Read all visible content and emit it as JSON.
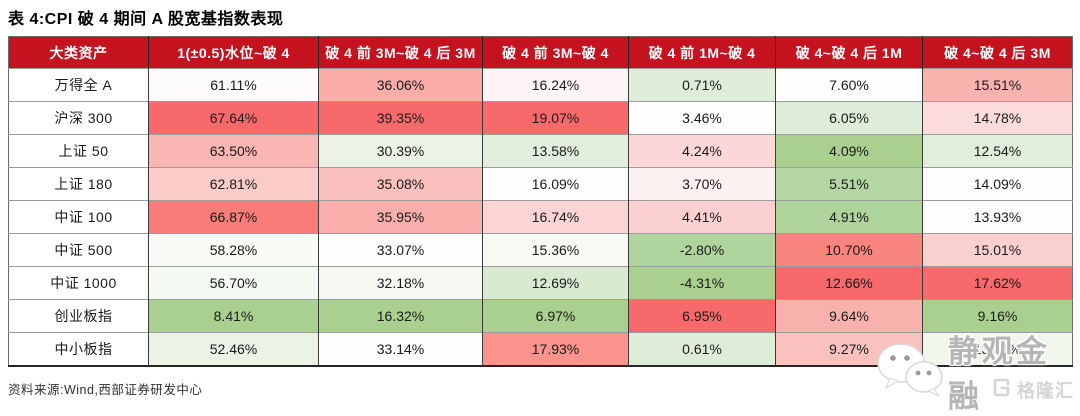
{
  "chart_data": {
    "type": "table",
    "title": "表 4:CPI 破 4 期间 A 股宽基指数表现",
    "source_note": "资料来源:Wind,西部证券研发中心",
    "columns": [
      "大类资产",
      "1(±0.5)水位~破 4",
      "破 4 前 3M~破 4 后 3M",
      "破 4 前 3M~破 4",
      "破 4 前 1M~破 4",
      "破 4~破 4 后 1M",
      "破 4~破 4 后 3M"
    ],
    "rows": [
      {
        "label": "万得全 A",
        "cells": [
          {
            "value": "61.11%",
            "bg": "#FDFBFB"
          },
          {
            "value": "36.06%",
            "bg": "#F9ACA8"
          },
          {
            "value": "16.24%",
            "bg": "#FDF5F5"
          },
          {
            "value": "0.71%",
            "bg": "#DFEDD9"
          },
          {
            "value": "7.60%",
            "bg": "#FEFEFE"
          },
          {
            "value": "15.51%",
            "bg": "#F9B3AF"
          }
        ]
      },
      {
        "label": "沪深 300",
        "cells": [
          {
            "value": "67.64%",
            "bg": "#F8696B"
          },
          {
            "value": "39.35%",
            "bg": "#F8696B"
          },
          {
            "value": "19.07%",
            "bg": "#F8696B"
          },
          {
            "value": "3.46%",
            "bg": "#FEFEFE"
          },
          {
            "value": "6.05%",
            "bg": "#DEEDD8"
          },
          {
            "value": "14.78%",
            "bg": "#FBDCDB"
          }
        ]
      },
      {
        "label": "上证 50",
        "cells": [
          {
            "value": "63.50%",
            "bg": "#F9B6B3"
          },
          {
            "value": "30.39%",
            "bg": "#EAF3E6"
          },
          {
            "value": "13.58%",
            "bg": "#E2EFDC"
          },
          {
            "value": "4.24%",
            "bg": "#FBD8D7"
          },
          {
            "value": "4.09%",
            "bg": "#A9D08E"
          },
          {
            "value": "12.54%",
            "bg": "#E0EEDA"
          }
        ]
      },
      {
        "label": "上证 180",
        "cells": [
          {
            "value": "62.81%",
            "bg": "#FACBC9"
          },
          {
            "value": "35.08%",
            "bg": "#FAC0BD"
          },
          {
            "value": "16.09%",
            "bg": "#FEFEFE"
          },
          {
            "value": "3.70%",
            "bg": "#FDF1F1"
          },
          {
            "value": "5.51%",
            "bg": "#B4D6A2"
          },
          {
            "value": "14.09%",
            "bg": "#FEFEFE"
          }
        ]
      },
      {
        "label": "中证 100",
        "cells": [
          {
            "value": "66.87%",
            "bg": "#F87D79"
          },
          {
            "value": "35.95%",
            "bg": "#F9AEAB"
          },
          {
            "value": "16.74%",
            "bg": "#FAD5D4"
          },
          {
            "value": "4.41%",
            "bg": "#FAD1D0"
          },
          {
            "value": "4.91%",
            "bg": "#AED39B"
          },
          {
            "value": "13.93%",
            "bg": "#FCFEFB"
          }
        ]
      },
      {
        "label": "中证 500",
        "cells": [
          {
            "value": "58.28%",
            "bg": "#F8FBF6"
          },
          {
            "value": "33.07%",
            "bg": "#FDFDFC"
          },
          {
            "value": "15.36%",
            "bg": "#F6FAF3"
          },
          {
            "value": "-2.80%",
            "bg": "#B0D49E"
          },
          {
            "value": "10.70%",
            "bg": "#F8857E"
          },
          {
            "value": "15.01%",
            "bg": "#FAD0CF"
          }
        ]
      },
      {
        "label": "中证 1000",
        "cells": [
          {
            "value": "56.70%",
            "bg": "#F4F9F1"
          },
          {
            "value": "32.18%",
            "bg": "#F5F9F2"
          },
          {
            "value": "12.69%",
            "bg": "#D9EAD2"
          },
          {
            "value": "-4.31%",
            "bg": "#A9D08E"
          },
          {
            "value": "12.66%",
            "bg": "#F8696B"
          },
          {
            "value": "17.62%",
            "bg": "#F8696B"
          }
        ]
      },
      {
        "label": "创业板指",
        "cells": [
          {
            "value": "8.41%",
            "bg": "#A9D08E"
          },
          {
            "value": "16.32%",
            "bg": "#A9D08E"
          },
          {
            "value": "6.97%",
            "bg": "#A9D08E"
          },
          {
            "value": "6.95%",
            "bg": "#F8696B"
          },
          {
            "value": "9.64%",
            "bg": "#F9B1AD"
          },
          {
            "value": "9.16%",
            "bg": "#A9D08E"
          }
        ]
      },
      {
        "label": "中小板指",
        "cells": [
          {
            "value": "52.46%",
            "bg": "#EBF3E6"
          },
          {
            "value": "33.14%",
            "bg": "#FEFEFE"
          },
          {
            "value": "17.93%",
            "bg": "#F9938C"
          },
          {
            "value": "0.61%",
            "bg": "#DFEDD8"
          },
          {
            "value": "9.27%",
            "bg": "#FAC2BF"
          },
          {
            "value": "13.51%",
            "bg": "#F0F6EC"
          }
        ]
      }
    ]
  },
  "watermark": {
    "icon": "wechat-icon",
    "text": "静观金融"
  },
  "logo": {
    "icon": "gelonghui-g-icon",
    "text": "格隆汇"
  },
  "colors": {
    "header_bg": "#C5121F",
    "header_text": "#FFFFFF",
    "scale_red": "#F8696B",
    "scale_green": "#A9D08E",
    "scale_mid": "#FCFCFC",
    "border_dark": "#3A3A3A",
    "border_light": "#9C9C9C",
    "watermark_gray": "#B5B5B5",
    "logo_gray": "#D3D5D8"
  }
}
